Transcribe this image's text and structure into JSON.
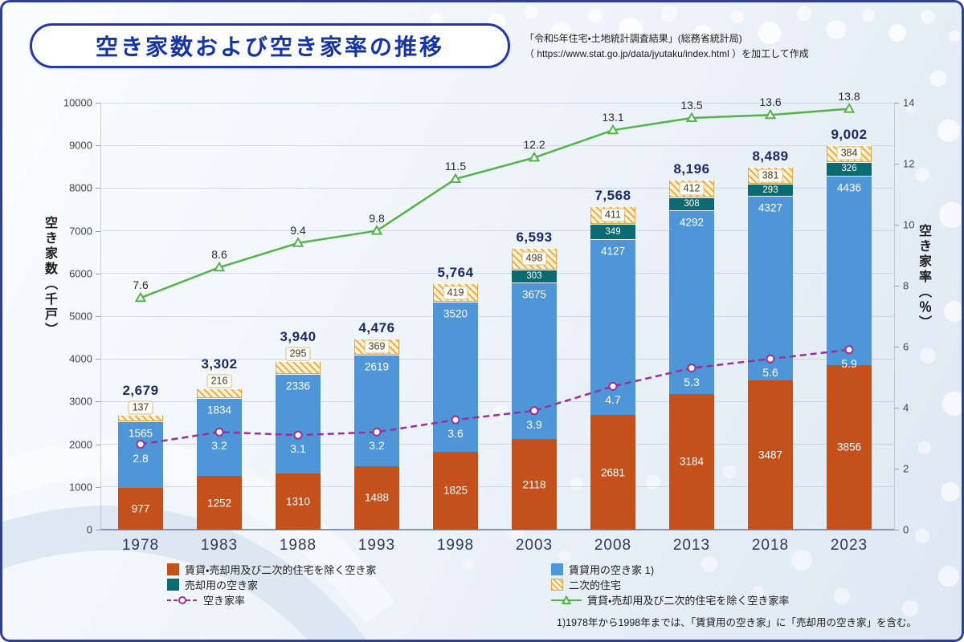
{
  "title": "空き家数および空き家率の推移",
  "source": {
    "line1": "「令和5年住宅・土地統計調査結果」(総務省統計局)",
    "line2": "（ https://www.stat.go.jp/data/jyutaku/index.html ）を加工して作成"
  },
  "axes": {
    "left_label": "空き家数（千戸）",
    "right_label": "空き家率（％）",
    "left_ticks": [
      0,
      1000,
      2000,
      3000,
      4000,
      5000,
      6000,
      7000,
      8000,
      9000,
      10000
    ],
    "right_ticks": [
      0,
      2,
      4,
      6,
      8,
      10,
      12,
      14
    ]
  },
  "chart_data": {
    "type": "combo: stacked bar (left axis) + line (right axis)",
    "categories": [
      "1978",
      "1983",
      "1988",
      "1993",
      "1998",
      "2003",
      "2008",
      "2013",
      "2018",
      "2023"
    ],
    "left_ylim": [
      0,
      10000
    ],
    "right_ylim": [
      0,
      14
    ],
    "bar_series": [
      {
        "name": "賃貸・売却用及び二次的住宅を除く空き家",
        "color": "#c4511c",
        "label_color": "#ffffff",
        "values": [
          977,
          1252,
          1310,
          1488,
          1825,
          2118,
          2681,
          3184,
          3487,
          3856
        ]
      },
      {
        "name": "賃貸用の空き家 1)",
        "color": "#4e96d8",
        "label_color": "#ffffff",
        "values": [
          1565,
          1834,
          2336,
          2619,
          3520,
          3675,
          4127,
          4292,
          4327,
          4436
        ]
      },
      {
        "name": "売却用の空き家",
        "color": "#0b6b70",
        "label_color": "#ffffff",
        "values": [
          null,
          null,
          null,
          null,
          null,
          303,
          349,
          308,
          293,
          326
        ]
      },
      {
        "name": "二次的住宅",
        "color": "#faf0d2",
        "hatch_color": "#eda53f",
        "label_color": "#4a3c15",
        "values": [
          137,
          216,
          295,
          369,
          419,
          498,
          411,
          412,
          381,
          384
        ]
      }
    ],
    "totals": [
      "2,679",
      "3,302",
      "3,940",
      "4,476",
      "5,764",
      "6,593",
      "7,568",
      "8,196",
      "8,489",
      "9,002"
    ],
    "line_series": [
      {
        "name": "空き家率",
        "color": "#9c2f9c",
        "dash": true,
        "marker": "circle",
        "label_position": "below",
        "label_color": "#ffffff",
        "values": [
          2.8,
          3.2,
          3.1,
          3.2,
          3.6,
          3.9,
          4.7,
          5.3,
          5.6,
          5.9
        ]
      },
      {
        "name": "賃貸・売却用及び二次的住宅を除く空き家率",
        "color": "#53b34a",
        "dash": false,
        "marker": "triangle",
        "label_position": "above",
        "label_color": "#2b2b2b",
        "values": [
          7.6,
          8.6,
          9.4,
          9.8,
          11.5,
          12.2,
          13.1,
          13.5,
          13.6,
          13.8
        ]
      }
    ]
  },
  "legend": {
    "columns": [
      [
        {
          "kind": "bar",
          "index": 0
        },
        {
          "kind": "bar",
          "index": 2
        },
        {
          "kind": "line",
          "index": 0
        }
      ],
      [
        {
          "kind": "bar",
          "index": 1
        },
        {
          "kind": "bar",
          "index": 3
        },
        {
          "kind": "line",
          "index": 1
        }
      ]
    ]
  },
  "footnote": "1)1978年から1998年までは、「賃貸用の空き家」に「売却用の空き家」を含む。"
}
